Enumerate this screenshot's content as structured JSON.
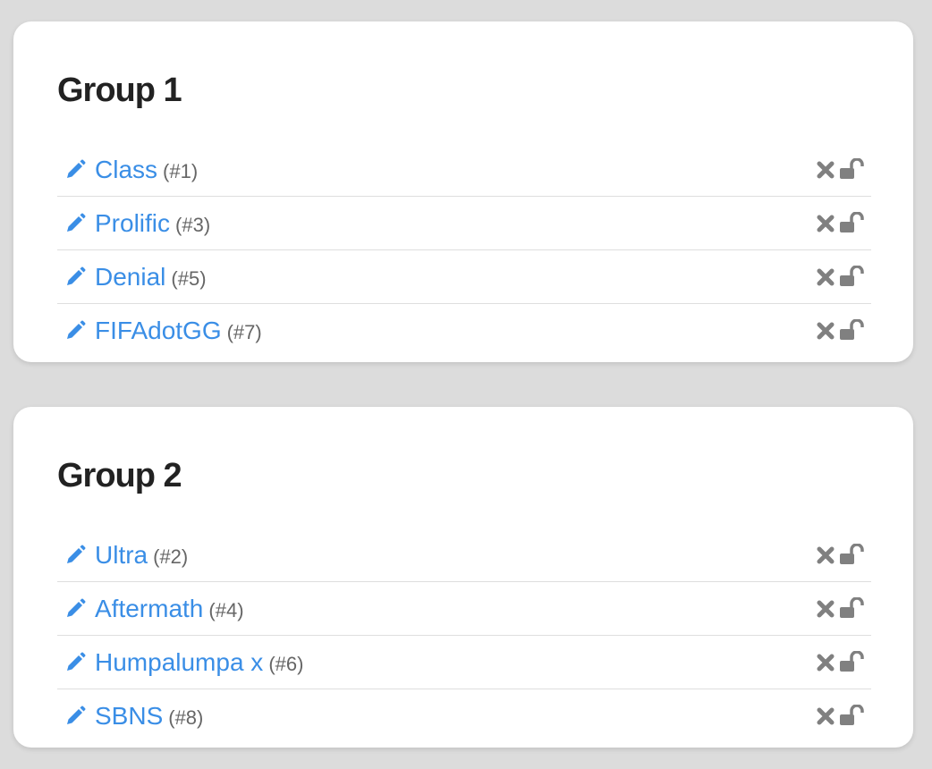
{
  "groups": [
    {
      "title": "Group 1",
      "items": [
        {
          "name": "Class",
          "id": "(#1)"
        },
        {
          "name": "Prolific",
          "id": "(#3)"
        },
        {
          "name": "Denial",
          "id": "(#5)"
        },
        {
          "name": "FIFAdotGG",
          "id": "(#7)"
        }
      ]
    },
    {
      "title": "Group 2",
      "items": [
        {
          "name": "Ultra",
          "id": "(#2)"
        },
        {
          "name": "Aftermath",
          "id": "(#4)"
        },
        {
          "name": "Humpalumpa x",
          "id": "(#6)"
        },
        {
          "name": "SBNS",
          "id": "(#8)"
        }
      ]
    }
  ]
}
